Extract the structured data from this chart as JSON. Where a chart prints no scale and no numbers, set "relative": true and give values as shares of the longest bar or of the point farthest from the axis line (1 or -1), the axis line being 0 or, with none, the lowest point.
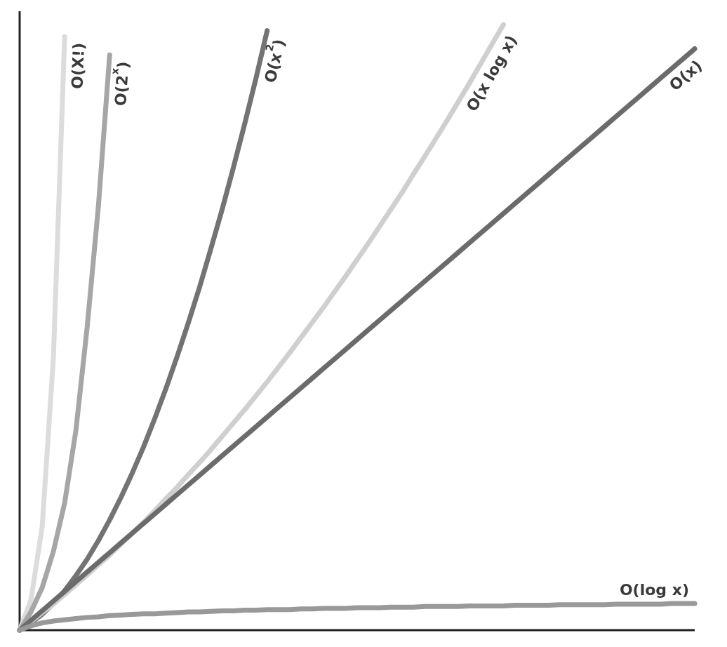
{
  "chart_data": {
    "type": "line",
    "relative": true,
    "categories": [
      null,
      null,
      null,
      null,
      null,
      null,
      null,
      null,
      null,
      null,
      null,
      null,
      null,
      null,
      null,
      null,
      null,
      null,
      null,
      null,
      null,
      null,
      null,
      null,
      null,
      null,
      null,
      null,
      null,
      null,
      null,
      null,
      null,
      null,
      null,
      null,
      null,
      null,
      null,
      null,
      null,
      null,
      null,
      null,
      null,
      null,
      null,
      null,
      null,
      null,
      null,
      null,
      null,
      null,
      null,
      null,
      null,
      null,
      null,
      null,
      null
    ],
    "series": [
      {
        "name": "O(X!)",
        "color": "#dcdcdc",
        "values": [
          0,
          0.05,
          0.17,
          0.45,
          0.98,
          null,
          null,
          null,
          null,
          null,
          null,
          null,
          null,
          null,
          null,
          null,
          null,
          null,
          null,
          null,
          null,
          null,
          null,
          null,
          null,
          null,
          null,
          null,
          null,
          null,
          null,
          null,
          null,
          null,
          null,
          null,
          null,
          null,
          null,
          null,
          null,
          null,
          null,
          null,
          null,
          null,
          null,
          null,
          null,
          null,
          null,
          null,
          null,
          null,
          null,
          null,
          null,
          null,
          null,
          null,
          null
        ]
      },
      {
        "name": "O(2$^{x}$)",
        "color": "#a6a6a6",
        "values": [
          0,
          0.03,
          0.07,
          0.13,
          0.21,
          0.33,
          0.5,
          0.7,
          0.95,
          null,
          null,
          null,
          null,
          null,
          null,
          null,
          null,
          null,
          null,
          null,
          null,
          null,
          null,
          null,
          null,
          null,
          null,
          null,
          null,
          null,
          null,
          null,
          null,
          null,
          null,
          null,
          null,
          null,
          null,
          null,
          null,
          null,
          null,
          null,
          null,
          null,
          null,
          null,
          null,
          null,
          null,
          null,
          null,
          null,
          null,
          null,
          null,
          null,
          null,
          null,
          null
        ]
      },
      {
        "name": "O(x$^{2}$)",
        "color": "#737373",
        "values": [
          0,
          0.012,
          0.026,
          0.044,
          0.065,
          0.09,
          0.117,
          0.148,
          0.182,
          0.219,
          0.259,
          0.302,
          0.349,
          0.399,
          0.452,
          0.508,
          0.567,
          0.63,
          0.695,
          0.764,
          0.836,
          0.911,
          0.99,
          null,
          null,
          null,
          null,
          null,
          null,
          null,
          null,
          null,
          null,
          null,
          null,
          null,
          null,
          null,
          null,
          null,
          null,
          null,
          null,
          null,
          null,
          null,
          null,
          null,
          null,
          null,
          null,
          null,
          null,
          null,
          null,
          null,
          null,
          null,
          null,
          null,
          null
        ]
      },
      {
        "name": "O(x log x)",
        "color": "#cfcfcf",
        "values": [
          0,
          0.014,
          0.029,
          0.043,
          0.059,
          0.075,
          0.091,
          0.108,
          0.124,
          0.142,
          0.16,
          0.178,
          0.197,
          0.217,
          0.236,
          0.257,
          0.277,
          0.298,
          0.32,
          0.342,
          0.364,
          0.387,
          0.41,
          0.434,
          0.458,
          0.483,
          0.508,
          0.533,
          0.559,
          0.585,
          0.612,
          0.639,
          0.667,
          0.695,
          0.723,
          0.753,
          0.782,
          0.812,
          0.842,
          0.873,
          0.904,
          0.936,
          0.968,
          1,
          null,
          null,
          null,
          null,
          null,
          null,
          null,
          null,
          null,
          null,
          null,
          null,
          null,
          null,
          null,
          null,
          null
        ]
      },
      {
        "name": "O(x)",
        "color": "#6b6b6b",
        "values": [
          0,
          0.016,
          0.032,
          0.048,
          0.064,
          0.08,
          0.096,
          0.112,
          0.128,
          0.144,
          0.16,
          0.176,
          0.192,
          0.208,
          0.224,
          0.24,
          0.256,
          0.272,
          0.288,
          0.304,
          0.32,
          0.336,
          0.352,
          0.368,
          0.384,
          0.4,
          0.416,
          0.432,
          0.448,
          0.464,
          0.48,
          0.496,
          0.512,
          0.528,
          0.544,
          0.56,
          0.576,
          0.592,
          0.608,
          0.624,
          0.64,
          0.656,
          0.672,
          0.688,
          0.704,
          0.72,
          0.736,
          0.752,
          0.768,
          0.784,
          0.8,
          0.816,
          0.832,
          0.848,
          0.864,
          0.88,
          0.896,
          0.912,
          0.928,
          0.944,
          0.96
        ]
      },
      {
        "name": "O(log x)",
        "color": "#999999",
        "values": [
          0,
          0.007,
          0.012,
          0.015,
          0.017,
          0.019,
          0.021,
          0.022,
          0.024,
          0.025,
          0.026,
          0.027,
          0.027,
          0.028,
          0.029,
          0.03,
          0.03,
          0.031,
          0.032,
          0.032,
          0.033,
          0.033,
          0.034,
          0.034,
          0.034,
          0.035,
          0.035,
          0.036,
          0.036,
          0.036,
          0.037,
          0.037,
          0.037,
          0.038,
          0.038,
          0.038,
          0.039,
          0.039,
          0.039,
          0.039,
          0.04,
          0.04,
          0.04,
          0.04,
          0.041,
          0.041,
          0.041,
          0.041,
          0.042,
          0.042,
          0.042,
          0.042,
          0.042,
          0.043,
          0.043,
          0.043,
          0.043,
          0.043,
          0.044,
          0.044,
          0.044
        ]
      }
    ]
  }
}
